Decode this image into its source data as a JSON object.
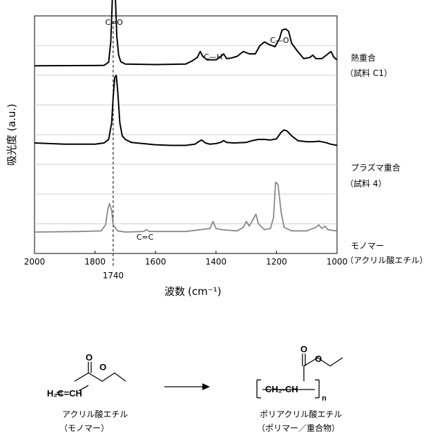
{
  "chart_data": {
    "type": "line",
    "xlabel": "波数",
    "xlabel_unit": "(cm⁻¹)",
    "ylabel": "吸光度 (a.u.)",
    "xlim": [
      2000,
      1000
    ],
    "x_ticks": [
      "2000",
      "1800",
      "1600",
      "1400",
      "1200",
      "1000"
    ],
    "reference_line": {
      "x": 1740,
      "label": "1740"
    },
    "grid": "horizontal",
    "series": [
      {
        "name": "熱重合（試料 C1）",
        "label_lines": [
          "熱重合",
          "（試料 C1）"
        ],
        "color": "#000000",
        "baseline": 0.79,
        "points": [
          [
            2000,
            0
          ],
          [
            1800,
            0.002
          ],
          [
            1770,
            0.004
          ],
          [
            1755,
            0.03
          ],
          [
            1748,
            0.2
          ],
          [
            1743,
            0.55
          ],
          [
            1740,
            0.72
          ],
          [
            1737,
            0.78
          ],
          [
            1733,
            0.6
          ],
          [
            1728,
            0.25
          ],
          [
            1722,
            0.09
          ],
          [
            1715,
            0.035
          ],
          [
            1700,
            0.015
          ],
          [
            1600,
            0.01
          ],
          [
            1500,
            0.015
          ],
          [
            1480,
            0.04
          ],
          [
            1462,
            0.07
          ],
          [
            1452,
            0.12
          ],
          [
            1444,
            0.08
          ],
          [
            1430,
            0.05
          ],
          [
            1400,
            0.05
          ],
          [
            1385,
            0.075
          ],
          [
            1375,
            0.1
          ],
          [
            1365,
            0.06
          ],
          [
            1350,
            0.065
          ],
          [
            1330,
            0.08
          ],
          [
            1310,
            0.12
          ],
          [
            1290,
            0.1
          ],
          [
            1270,
            0.1
          ],
          [
            1255,
            0.17
          ],
          [
            1240,
            0.2
          ],
          [
            1225,
            0.18
          ],
          [
            1205,
            0.16
          ],
          [
            1190,
            0.23
          ],
          [
            1182,
            0.3
          ],
          [
            1170,
            0.31
          ],
          [
            1160,
            0.29
          ],
          [
            1150,
            0.19
          ],
          [
            1130,
            0.12
          ],
          [
            1110,
            0.06
          ],
          [
            1090,
            0.07
          ],
          [
            1080,
            0.09
          ],
          [
            1070,
            0.06
          ],
          [
            1050,
            0.06
          ],
          [
            1030,
            0.1
          ],
          [
            1020,
            0.12
          ],
          [
            1010,
            0.07
          ],
          [
            1000,
            0.05
          ]
        ]
      },
      {
        "name": "プラズマ重合（試料 4）",
        "label_lines": [
          "プラズマ重合",
          "（試料 4）"
        ],
        "color": "#000000",
        "baseline": 0.46,
        "points": [
          [
            2000,
            0.01
          ],
          [
            1900,
            0
          ],
          [
            1800,
            0.0
          ],
          [
            1770,
            0.01
          ],
          [
            1755,
            0.04
          ],
          [
            1745,
            0.18
          ],
          [
            1740,
            0.4
          ],
          [
            1735,
            0.56
          ],
          [
            1730,
            0.58
          ],
          [
            1725,
            0.45
          ],
          [
            1718,
            0.18
          ],
          [
            1710,
            0.07
          ],
          [
            1700,
            0.04
          ],
          [
            1680,
            0.015
          ],
          [
            1600,
            -0.005
          ],
          [
            1550,
            -0.01
          ],
          [
            1500,
            -0.01
          ],
          [
            1470,
            0.0
          ],
          [
            1455,
            0.025
          ],
          [
            1448,
            0.035
          ],
          [
            1435,
            0.01
          ],
          [
            1420,
            0.0
          ],
          [
            1400,
            0.005
          ],
          [
            1385,
            0.015
          ],
          [
            1375,
            0.03
          ],
          [
            1365,
            0.015
          ],
          [
            1340,
            0.01
          ],
          [
            1300,
            0.015
          ],
          [
            1280,
            0.03
          ],
          [
            1260,
            0.04
          ],
          [
            1240,
            0.04
          ],
          [
            1220,
            0.035
          ],
          [
            1200,
            0.045
          ],
          [
            1185,
            0.1
          ],
          [
            1175,
            0.12
          ],
          [
            1165,
            0.11
          ],
          [
            1150,
            0.07
          ],
          [
            1130,
            0.03
          ],
          [
            1100,
            0.02
          ],
          [
            1080,
            0.02
          ],
          [
            1060,
            0.025
          ],
          [
            1040,
            0.015
          ],
          [
            1020,
            0.0
          ],
          [
            1000,
            -0.01
          ]
        ]
      },
      {
        "name": "モノマー（アクリル酸エチル）",
        "label_lines": [
          "モノマー",
          "（アクリル酸エチル）"
        ],
        "color": "#888888",
        "baseline": 0.09,
        "points": [
          [
            2000,
            0
          ],
          [
            1850,
            0.005
          ],
          [
            1780,
            0.01
          ],
          [
            1765,
            0.06
          ],
          [
            1758,
            0.19
          ],
          [
            1752,
            0.24
          ],
          [
            1745,
            0.18
          ],
          [
            1740,
            0.06
          ],
          [
            1725,
            0.01
          ],
          [
            1700,
            0
          ],
          [
            1640,
            0.005
          ],
          [
            1630,
            0.02
          ],
          [
            1620,
            0.005
          ],
          [
            1500,
            0.005
          ],
          [
            1420,
            0.03
          ],
          [
            1410,
            0.09
          ],
          [
            1400,
            0.03
          ],
          [
            1380,
            0.02
          ],
          [
            1330,
            0.01
          ],
          [
            1310,
            0.04
          ],
          [
            1300,
            0.09
          ],
          [
            1290,
            0.05
          ],
          [
            1275,
            0.12
          ],
          [
            1268,
            0.15
          ],
          [
            1260,
            0.07
          ],
          [
            1240,
            0.02
          ],
          [
            1220,
            0.03
          ],
          [
            1210,
            0.12
          ],
          [
            1203,
            0.42
          ],
          [
            1195,
            0.4
          ],
          [
            1185,
            0.17
          ],
          [
            1175,
            0.04
          ],
          [
            1150,
            0.01
          ],
          [
            1100,
            0.01
          ],
          [
            1070,
            0.04
          ],
          [
            1060,
            0.06
          ],
          [
            1050,
            0.03
          ],
          [
            1040,
            0.05
          ],
          [
            1030,
            0.02
          ],
          [
            1000,
            0.01
          ]
        ]
      }
    ],
    "annotations": [
      {
        "text": "C=O",
        "x": 1737
      },
      {
        "text": "C—H",
        "x": 1410
      },
      {
        "text": "C—O",
        "x": 1190
      },
      {
        "text": "C=C",
        "x": 1635
      }
    ]
  },
  "scheme": {
    "monomer_formula": "H₂C=CH",
    "monomer_name": "アクリル酸エチル",
    "monomer_sub": "（モノマー）",
    "polymer_formula": "CH₂-CH",
    "polymer_subscript": "n",
    "polymer_name": "ポリアクリル酸エチル",
    "polymer_sub": "（ポリマー／重合物）",
    "atom_O": "O"
  }
}
